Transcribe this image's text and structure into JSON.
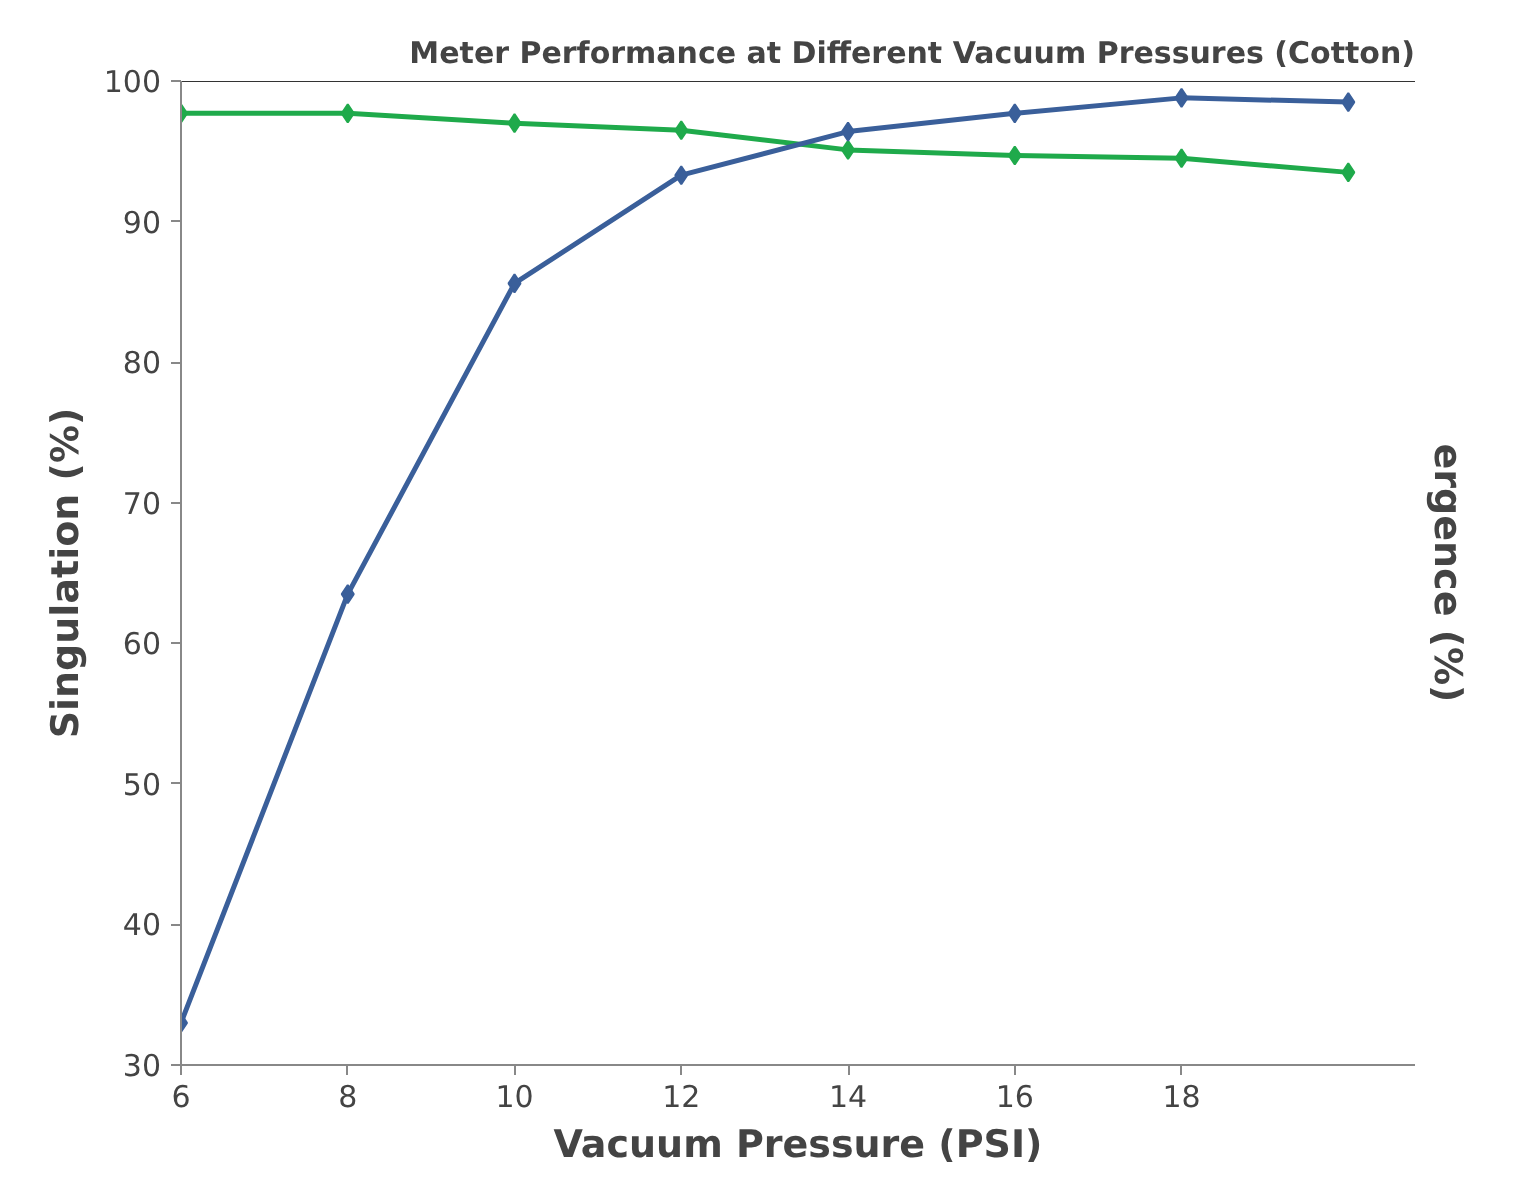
{
  "chart_data": {
    "type": "line",
    "title": "Meter Performance at Different Vacuum Pressures (Cotton)",
    "xlabel": "Vacuum Pressure (PSI)",
    "ylabel": "Singulation (%)",
    "y2label": "ergence (%)",
    "x": [
      6,
      8,
      10,
      12,
      14,
      16,
      18,
      20
    ],
    "series": [
      {
        "color": "#1faa4b",
        "values": [
          97.7,
          97.7,
          97.0,
          96.5,
          95.1,
          94.7,
          94.5,
          93.5
        ]
      },
      {
        "color": "#3a5f9a",
        "values": [
          33,
          63.5,
          85.6,
          93.3,
          96.4,
          97.7,
          98.8,
          98.5
        ]
      }
    ],
    "xlim": [
      6,
      20.8
    ],
    "xticks": [
      6,
      8,
      10,
      12,
      14,
      16,
      18
    ],
    "ylim": [
      30,
      100
    ],
    "yticks": [
      30,
      40,
      50,
      60,
      70,
      80,
      90,
      100
    ],
    "marker": "diamond",
    "grid": false
  }
}
